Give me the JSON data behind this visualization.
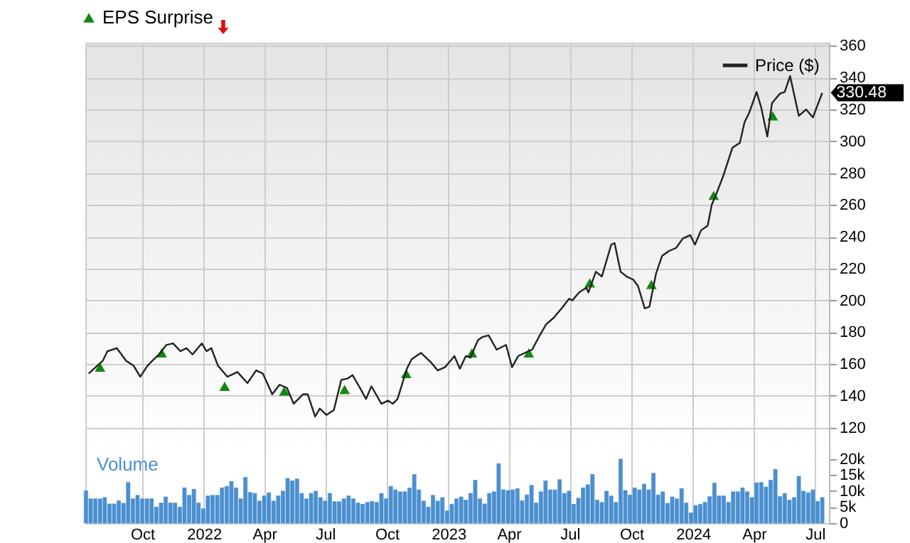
{
  "chart_data": {
    "type": "line",
    "xlim": [
      "2021-07-08",
      "2024-07-22"
    ],
    "ylim": [
      60,
      362
    ],
    "y2lim": [
      0,
      150000
    ],
    "xticks": [
      {
        "value": "2021-10-01",
        "label": "Oct"
      },
      {
        "value": "2022-01-01",
        "label": "2022"
      },
      {
        "value": "2022-04-01",
        "label": "Apr"
      },
      {
        "value": "2022-07-01",
        "label": "Jul"
      },
      {
        "value": "2022-10-01",
        "label": "Oct"
      },
      {
        "value": "2023-01-01",
        "label": "2023"
      },
      {
        "value": "2023-04-01",
        "label": "Apr"
      },
      {
        "value": "2023-07-01",
        "label": "Jul"
      },
      {
        "value": "2023-10-01",
        "label": "Oct"
      },
      {
        "value": "2024-01-01",
        "label": "2024"
      },
      {
        "value": "2024-04-01",
        "label": "Apr"
      },
      {
        "value": "2024-07-01",
        "label": "Jul"
      }
    ],
    "yticks": [
      120,
      140,
      160,
      180,
      200,
      220,
      240,
      260,
      280,
      300,
      320,
      340,
      360
    ],
    "y2ticks": [
      0,
      {
        "value": 5000,
        "label": "5k"
      },
      {
        "value": 10000,
        "label": "10k"
      },
      {
        "value": 15000,
        "label": "15k"
      },
      {
        "value": 20000,
        "label": "20k"
      }
    ],
    "grid": true,
    "legend": "top right",
    "series": [
      {
        "name": "Price ($)",
        "color": "#222222",
        "x": [
          "2021-07-13",
          "2021-08-03",
          "2021-08-10",
          "2021-08-24",
          "2021-09-07",
          "2021-09-18",
          "2021-09-28",
          "2021-10-09",
          "2021-10-16",
          "2021-10-26",
          "2021-11-06",
          "2021-11-16",
          "2021-11-27",
          "2021-12-06",
          "2021-12-15",
          "2021-12-29",
          "2022-01-05",
          "2022-01-12",
          "2022-01-22",
          "2022-02-05",
          "2022-02-20",
          "2022-03-07",
          "2022-03-20",
          "2022-03-30",
          "2022-04-13",
          "2022-04-24",
          "2022-05-05",
          "2022-05-15",
          "2022-05-29",
          "2022-06-05",
          "2022-06-16",
          "2022-06-23",
          "2022-07-03",
          "2022-07-14",
          "2022-07-25",
          "2022-08-04",
          "2022-08-11",
          "2022-08-22",
          "2022-08-31",
          "2022-09-08",
          "2022-09-23",
          "2022-10-03",
          "2022-10-10",
          "2022-10-17",
          "2022-10-31",
          "2022-11-07",
          "2022-11-21",
          "2022-12-06",
          "2022-12-16",
          "2022-12-27",
          "2023-01-10",
          "2023-01-18",
          "2023-01-27",
          "2023-02-03",
          "2023-02-14",
          "2023-02-21",
          "2023-03-02",
          "2023-03-14",
          "2023-03-28",
          "2023-04-06",
          "2023-04-15",
          "2023-04-25",
          "2023-05-06",
          "2023-05-16",
          "2023-05-27",
          "2023-06-07",
          "2023-06-21",
          "2023-06-30",
          "2023-07-05",
          "2023-07-15",
          "2023-07-26",
          "2023-07-29",
          "2023-08-09",
          "2023-08-18",
          "2023-09-01",
          "2023-09-06",
          "2023-09-15",
          "2023-09-24",
          "2023-10-04",
          "2023-10-11",
          "2023-10-21",
          "2023-10-28",
          "2023-11-07",
          "2023-11-16",
          "2023-11-26",
          "2023-12-07",
          "2023-12-17",
          "2023-12-28",
          "2024-01-04",
          "2024-01-13",
          "2024-01-23",
          "2024-01-29",
          "2024-02-05",
          "2024-02-15",
          "2024-02-29",
          "2024-03-11",
          "2024-03-18",
          "2024-03-25",
          "2024-04-05",
          "2024-04-12",
          "2024-04-21",
          "2024-04-28",
          "2024-05-10",
          "2024-05-17",
          "2024-05-25",
          "2024-06-07",
          "2024-06-18",
          "2024-06-28",
          "2024-07-12"
        ],
        "values": [
          154,
          162,
          168,
          170,
          162,
          159,
          152,
          159,
          162,
          166,
          172,
          173,
          168,
          170,
          166,
          173,
          168,
          170,
          159,
          152,
          155,
          148,
          156,
          154,
          141,
          147,
          145,
          135,
          141,
          141,
          127,
          132,
          128,
          131,
          150,
          151,
          153,
          145,
          138,
          146,
          135,
          137,
          135,
          138,
          157,
          163,
          167,
          161,
          156,
          158,
          165,
          157,
          165,
          164,
          175,
          177,
          178,
          169,
          172,
          158,
          165,
          167,
          169,
          177,
          185,
          189,
          196,
          201,
          200,
          205,
          208,
          205,
          218,
          215,
          235,
          236,
          218,
          215,
          213,
          209,
          195,
          196,
          217,
          228,
          231,
          233,
          239,
          241,
          235,
          244,
          247,
          260,
          267,
          278,
          296,
          299,
          312,
          318,
          331,
          321,
          303,
          324,
          330,
          331,
          341,
          316,
          320,
          315,
          330.48
        ]
      },
      {
        "name": "EPS Surprise",
        "type": "scatter",
        "marker": "triangle",
        "color": "#118811",
        "x": [
          "2021-07-30",
          "2021-10-30",
          "2022-02-01",
          "2022-05-01",
          "2022-07-30",
          "2022-10-30",
          "2023-02-05",
          "2023-05-01",
          "2023-07-31",
          "2023-10-31",
          "2024-02-01",
          "2024-04-29"
        ],
        "values": [
          158,
          167,
          146,
          143,
          144,
          154,
          167,
          167,
          211,
          210,
          266,
          316
        ]
      },
      {
        "name": "Volume",
        "type": "bar",
        "axis": "y2",
        "color": "#4a8fd0",
        "x": [
          "2021-07-09",
          "2021-07-16",
          "2021-07-23",
          "2021-07-30",
          "2021-08-06",
          "2021-08-13",
          "2021-08-20",
          "2021-08-27",
          "2021-09-03",
          "2021-09-10",
          "2021-09-17",
          "2021-09-24",
          "2021-10-01",
          "2021-10-08",
          "2021-10-15",
          "2021-10-22",
          "2021-10-29",
          "2021-11-05",
          "2021-11-12",
          "2021-11-19",
          "2021-11-26",
          "2021-12-03",
          "2021-12-10",
          "2021-12-17",
          "2021-12-24",
          "2021-12-31",
          "2022-01-07",
          "2022-01-14",
          "2022-01-21",
          "2022-01-28",
          "2022-02-04",
          "2022-02-11",
          "2022-02-18",
          "2022-02-25",
          "2022-03-04",
          "2022-03-11",
          "2022-03-18",
          "2022-03-25",
          "2022-04-01",
          "2022-04-08",
          "2022-04-15",
          "2022-04-22",
          "2022-04-29",
          "2022-05-06",
          "2022-05-13",
          "2022-05-20",
          "2022-05-27",
          "2022-06-03",
          "2022-06-10",
          "2022-06-17",
          "2022-06-24",
          "2022-07-01",
          "2022-07-08",
          "2022-07-15",
          "2022-07-22",
          "2022-07-29",
          "2022-08-05",
          "2022-08-12",
          "2022-08-19",
          "2022-08-26",
          "2022-09-02",
          "2022-09-09",
          "2022-09-16",
          "2022-09-23",
          "2022-09-30",
          "2022-10-07",
          "2022-10-14",
          "2022-10-21",
          "2022-10-28",
          "2022-11-04",
          "2022-11-11",
          "2022-11-18",
          "2022-11-25",
          "2022-12-02",
          "2022-12-09",
          "2022-12-16",
          "2022-12-23",
          "2022-12-30",
          "2023-01-06",
          "2023-01-13",
          "2023-01-20",
          "2023-01-27",
          "2023-02-03",
          "2023-02-10",
          "2023-02-17",
          "2023-02-24",
          "2023-03-03",
          "2023-03-10",
          "2023-03-17",
          "2023-03-24",
          "2023-03-31",
          "2023-04-07",
          "2023-04-14",
          "2023-04-21",
          "2023-04-28",
          "2023-05-05",
          "2023-05-12",
          "2023-05-19",
          "2023-05-26",
          "2023-06-02",
          "2023-06-09",
          "2023-06-16",
          "2023-06-23",
          "2023-06-30",
          "2023-07-07",
          "2023-07-14",
          "2023-07-21",
          "2023-07-28",
          "2023-08-04",
          "2023-08-11",
          "2023-08-18",
          "2023-08-25",
          "2023-09-01",
          "2023-09-08",
          "2023-09-15",
          "2023-09-22",
          "2023-09-29",
          "2023-10-06",
          "2023-10-13",
          "2023-10-20",
          "2023-10-27",
          "2023-11-03",
          "2023-11-10",
          "2023-11-17",
          "2023-11-24",
          "2023-12-01",
          "2023-12-08",
          "2023-12-15",
          "2023-12-22",
          "2023-12-29",
          "2024-01-05",
          "2024-01-12",
          "2024-01-19",
          "2024-01-26",
          "2024-02-02",
          "2024-02-09",
          "2024-02-16",
          "2024-02-23",
          "2024-03-01",
          "2024-03-08",
          "2024-03-15",
          "2024-03-22",
          "2024-03-29",
          "2024-04-05",
          "2024-04-12",
          "2024-04-19",
          "2024-04-26",
          "2024-05-03",
          "2024-05-10",
          "2024-05-17",
          "2024-05-24",
          "2024-05-31",
          "2024-06-07",
          "2024-06-14",
          "2024-06-21",
          "2024-06-28",
          "2024-07-05",
          "2024-07-12"
        ],
        "values": [
          10100,
          7600,
          7600,
          7600,
          8000,
          6000,
          6000,
          7000,
          6200,
          12700,
          7600,
          8700,
          7600,
          7600,
          7600,
          5000,
          6300,
          8200,
          6300,
          6300,
          5000,
          11000,
          8700,
          10600,
          6300,
          4500,
          8500,
          8700,
          8700,
          11000,
          11500,
          13000,
          11000,
          7600,
          14300,
          9600,
          9300,
          6900,
          8500,
          9500,
          6900,
          8500,
          10000,
          14000,
          13200,
          13800,
          9300,
          7600,
          9300,
          10000,
          8000,
          6900,
          9300,
          6700,
          6700,
          7600,
          8500,
          7600,
          6300,
          5900,
          6500,
          6800,
          6500,
          9300,
          7600,
          11500,
          10400,
          9800,
          9800,
          11000,
          15200,
          10400,
          6900,
          5000,
          8700,
          6900,
          8000,
          3800,
          5900,
          7600,
          8200,
          7200,
          9300,
          13400,
          7600,
          6000,
          9300,
          9800,
          18600,
          10400,
          10200,
          10400,
          10800,
          7000,
          8800,
          11800,
          6300,
          9800,
          13200,
          10400,
          10400,
          13600,
          9300,
          10000,
          5900,
          7800,
          11000,
          12000,
          15200,
          7200,
          6500,
          10000,
          8500,
          6500,
          20000,
          10200,
          8800,
          11000,
          10400,
          12200,
          10400,
          15600,
          8800,
          9800,
          6200,
          8200,
          7600,
          10800,
          6300,
          3200,
          5500,
          5900,
          6500,
          8300,
          12500,
          8500,
          8500,
          6500,
          9800,
          9800,
          11000,
          9800,
          8000,
          12600,
          12700,
          11300,
          13400,
          16800,
          8300,
          9300,
          7200,
          8000,
          14600,
          10000,
          9500,
          10400,
          6800,
          8000
        ]
      }
    ],
    "annotations": [
      {
        "text": "330.48",
        "x": "2024-07-12",
        "y": 330.48
      }
    ]
  }
}
